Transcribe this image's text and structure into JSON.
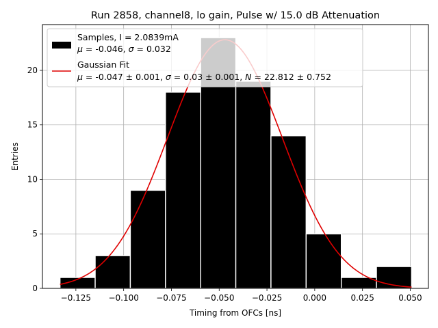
{
  "chart_data": {
    "type": "histogram",
    "title": "Run 2858, channel8, lo gain, Pulse w/ 15.0 dB Attenuation",
    "xlabel": "Timing from OFCs [ns]",
    "ylabel": "Entries",
    "xlim": [
      -0.1425,
      0.0595
    ],
    "ylim": [
      0,
      24.2
    ],
    "x_ticks": [
      -0.125,
      -0.1,
      -0.075,
      -0.05,
      -0.025,
      0.0,
      0.025,
      0.05
    ],
    "x_tick_labels": [
      "−0.125",
      "−0.100",
      "−0.075",
      "−0.050",
      "−0.025",
      "0.000",
      "0.025",
      "0.050"
    ],
    "y_ticks": [
      0,
      5,
      10,
      15,
      20
    ],
    "y_tick_labels": [
      "0",
      "5",
      "10",
      "15",
      "20"
    ],
    "grid": true,
    "legend_position": "top-left",
    "bins": {
      "edges": [
        -0.1333,
        -0.1149,
        -0.0965,
        -0.0781,
        -0.0597,
        -0.0413,
        -0.0229,
        -0.0045,
        0.0139,
        0.0323,
        0.0507
      ],
      "counts": [
        1,
        3,
        9,
        18,
        23,
        19,
        14,
        5,
        1,
        2
      ],
      "color": "#000000"
    },
    "fit": {
      "type": "gaussian",
      "mu": -0.047,
      "sigma": 0.03,
      "N": 22.812,
      "x_range": [
        -0.1333,
        0.0507
      ],
      "color": "#e00000"
    },
    "legend": {
      "samples": {
        "line1": "Samples, I = 2.0839mA",
        "mu_sym": "μ",
        "mid": " = -0.046, ",
        "sigma_sym": "σ",
        "end": " = 0.032"
      },
      "fit": {
        "line1": "Gaussian Fit",
        "mu_sym": "μ",
        "a": " = -0.047 ± 0.001, ",
        "sigma_sym": "σ",
        "b": " = 0.03 ± 0.001, ",
        "n_sym": "N",
        "c": " = 22.812 ± 0.752"
      }
    }
  }
}
